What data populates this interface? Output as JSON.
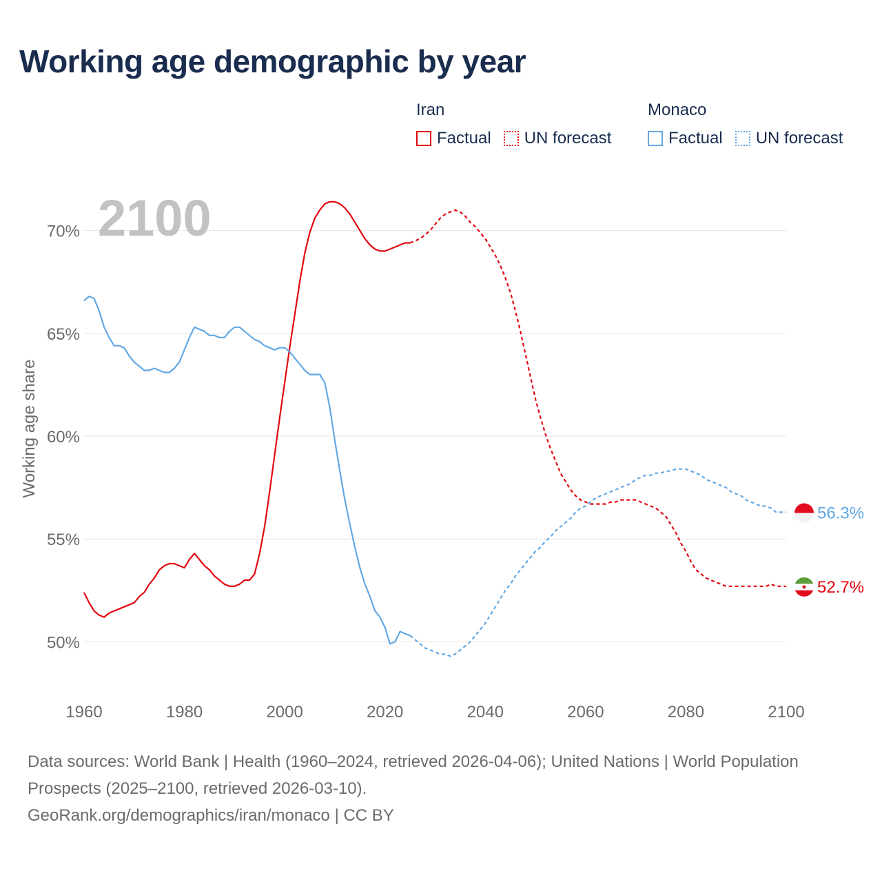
{
  "title": "Working age demographic by year",
  "legend": {
    "groups": [
      {
        "name": "Iran",
        "factual": "Factual",
        "forecast": "UN forecast"
      },
      {
        "name": "Monaco",
        "factual": "Factual",
        "forecast": "UN forecast"
      }
    ]
  },
  "footer": {
    "sources": "Data sources: World Bank | Health (1960–2024, retrieved 2026-04-06); United Nations | World Population Prospects (2025–2100, retrieved 2026-03-10).",
    "link": "GeoRank.org/demographics/iran/monaco | CC BY"
  },
  "chart_data": {
    "type": "line",
    "title": "Working age demographic by year",
    "ylabel": "Working age share",
    "xlabel": "",
    "year_label": "2100",
    "xlim": [
      1960,
      2100
    ],
    "ylim": [
      47.5,
      72.5
    ],
    "x_ticks": [
      1960,
      1980,
      2000,
      2020,
      2040,
      2060,
      2080,
      2100
    ],
    "x_tick_labels": [
      "1960",
      "1980",
      "2000",
      "2020",
      "2040",
      "2060",
      "2080",
      "2100"
    ],
    "y_ticks": [
      50,
      55,
      60,
      65,
      70
    ],
    "y_tick_labels": [
      "50%",
      "55%",
      "60%",
      "65%",
      "70%"
    ],
    "factual_end_year": 2025,
    "series": [
      {
        "name": "Iran",
        "color": "#e3060f",
        "end_label": "52.7%",
        "flag": "iran-flag-icon",
        "points": [
          [
            1960,
            52.4
          ],
          [
            1961,
            51.9
          ],
          [
            1962,
            51.5
          ],
          [
            1963,
            51.3
          ],
          [
            1964,
            51.2
          ],
          [
            1965,
            51.4
          ],
          [
            1966,
            51.5
          ],
          [
            1967,
            51.6
          ],
          [
            1968,
            51.7
          ],
          [
            1969,
            51.8
          ],
          [
            1970,
            51.9
          ],
          [
            1971,
            52.2
          ],
          [
            1972,
            52.4
          ],
          [
            1973,
            52.8
          ],
          [
            1974,
            53.1
          ],
          [
            1975,
            53.5
          ],
          [
            1976,
            53.7
          ],
          [
            1977,
            53.8
          ],
          [
            1978,
            53.8
          ],
          [
            1979,
            53.7
          ],
          [
            1980,
            53.6
          ],
          [
            1981,
            54.0
          ],
          [
            1982,
            54.3
          ],
          [
            1983,
            54.0
          ],
          [
            1984,
            53.7
          ],
          [
            1985,
            53.5
          ],
          [
            1986,
            53.2
          ],
          [
            1987,
            53.0
          ],
          [
            1988,
            52.8
          ],
          [
            1989,
            52.7
          ],
          [
            1990,
            52.7
          ],
          [
            1991,
            52.8
          ],
          [
            1992,
            53.0
          ],
          [
            1993,
            53.0
          ],
          [
            1994,
            53.3
          ],
          [
            1995,
            54.3
          ],
          [
            1996,
            55.6
          ],
          [
            1997,
            57.3
          ],
          [
            1998,
            59.1
          ],
          [
            1999,
            60.9
          ],
          [
            2000,
            62.6
          ],
          [
            2001,
            64.3
          ],
          [
            2002,
            65.9
          ],
          [
            2003,
            67.5
          ],
          [
            2004,
            68.9
          ],
          [
            2005,
            69.9
          ],
          [
            2006,
            70.6
          ],
          [
            2007,
            71.0
          ],
          [
            2008,
            71.3
          ],
          [
            2009,
            71.4
          ],
          [
            2010,
            71.4
          ],
          [
            2011,
            71.3
          ],
          [
            2012,
            71.1
          ],
          [
            2013,
            70.8
          ],
          [
            2014,
            70.4
          ],
          [
            2015,
            70.0
          ],
          [
            2016,
            69.6
          ],
          [
            2017,
            69.3
          ],
          [
            2018,
            69.1
          ],
          [
            2019,
            69.0
          ],
          [
            2020,
            69.0
          ],
          [
            2021,
            69.1
          ],
          [
            2022,
            69.2
          ],
          [
            2023,
            69.3
          ],
          [
            2024,
            69.4
          ],
          [
            2025,
            69.4
          ],
          [
            2026,
            69.5
          ],
          [
            2027,
            69.6
          ],
          [
            2028,
            69.8
          ],
          [
            2029,
            70.0
          ],
          [
            2030,
            70.3
          ],
          [
            2031,
            70.6
          ],
          [
            2032,
            70.8
          ],
          [
            2033,
            70.9
          ],
          [
            2034,
            71.0
          ],
          [
            2035,
            70.9
          ],
          [
            2036,
            70.7
          ],
          [
            2037,
            70.4
          ],
          [
            2038,
            70.2
          ],
          [
            2039,
            69.9
          ],
          [
            2040,
            69.6
          ],
          [
            2041,
            69.2
          ],
          [
            2042,
            68.8
          ],
          [
            2043,
            68.3
          ],
          [
            2044,
            67.7
          ],
          [
            2045,
            67.0
          ],
          [
            2046,
            66.1
          ],
          [
            2047,
            65.1
          ],
          [
            2048,
            64.0
          ],
          [
            2049,
            62.9
          ],
          [
            2050,
            61.8
          ],
          [
            2051,
            60.9
          ],
          [
            2052,
            60.1
          ],
          [
            2053,
            59.4
          ],
          [
            2054,
            58.8
          ],
          [
            2055,
            58.2
          ],
          [
            2056,
            57.8
          ],
          [
            2057,
            57.4
          ],
          [
            2058,
            57.1
          ],
          [
            2059,
            56.9
          ],
          [
            2060,
            56.8
          ],
          [
            2061,
            56.7
          ],
          [
            2062,
            56.7
          ],
          [
            2063,
            56.7
          ],
          [
            2064,
            56.7
          ],
          [
            2065,
            56.8
          ],
          [
            2066,
            56.8
          ],
          [
            2067,
            56.9
          ],
          [
            2068,
            56.9
          ],
          [
            2069,
            56.9
          ],
          [
            2070,
            56.9
          ],
          [
            2071,
            56.8
          ],
          [
            2072,
            56.7
          ],
          [
            2073,
            56.6
          ],
          [
            2074,
            56.5
          ],
          [
            2075,
            56.3
          ],
          [
            2076,
            56.1
          ],
          [
            2077,
            55.7
          ],
          [
            2078,
            55.3
          ],
          [
            2079,
            54.8
          ],
          [
            2080,
            54.4
          ],
          [
            2081,
            53.9
          ],
          [
            2082,
            53.5
          ],
          [
            2083,
            53.3
          ],
          [
            2084,
            53.1
          ],
          [
            2085,
            53.0
          ],
          [
            2086,
            52.9
          ],
          [
            2087,
            52.8
          ],
          [
            2088,
            52.7
          ],
          [
            2089,
            52.7
          ],
          [
            2090,
            52.7
          ],
          [
            2091,
            52.7
          ],
          [
            2092,
            52.7
          ],
          [
            2093,
            52.7
          ],
          [
            2094,
            52.7
          ],
          [
            2095,
            52.7
          ],
          [
            2096,
            52.7
          ],
          [
            2097,
            52.8
          ],
          [
            2098,
            52.7
          ],
          [
            2099,
            52.7
          ],
          [
            2100,
            52.7
          ]
        ]
      },
      {
        "name": "Monaco",
        "color": "#62a8e5",
        "end_label": "56.3%",
        "flag": "monaco-flag-icon",
        "points": [
          [
            1960,
            66.6
          ],
          [
            1961,
            66.8
          ],
          [
            1962,
            66.7
          ],
          [
            1963,
            66.1
          ],
          [
            1964,
            65.3
          ],
          [
            1965,
            64.8
          ],
          [
            1966,
            64.4
          ],
          [
            1967,
            64.4
          ],
          [
            1968,
            64.3
          ],
          [
            1969,
            63.9
          ],
          [
            1970,
            63.6
          ],
          [
            1971,
            63.4
          ],
          [
            1972,
            63.2
          ],
          [
            1973,
            63.2
          ],
          [
            1974,
            63.3
          ],
          [
            1975,
            63.2
          ],
          [
            1976,
            63.1
          ],
          [
            1977,
            63.1
          ],
          [
            1978,
            63.3
          ],
          [
            1979,
            63.6
          ],
          [
            1980,
            64.2
          ],
          [
            1981,
            64.8
          ],
          [
            1982,
            65.3
          ],
          [
            1983,
            65.2
          ],
          [
            1984,
            65.1
          ],
          [
            1985,
            64.9
          ],
          [
            1986,
            64.9
          ],
          [
            1987,
            64.8
          ],
          [
            1988,
            64.8
          ],
          [
            1989,
            65.1
          ],
          [
            1990,
            65.3
          ],
          [
            1991,
            65.3
          ],
          [
            1992,
            65.1
          ],
          [
            1993,
            64.9
          ],
          [
            1994,
            64.7
          ],
          [
            1995,
            64.6
          ],
          [
            1996,
            64.4
          ],
          [
            1997,
            64.3
          ],
          [
            1998,
            64.2
          ],
          [
            1999,
            64.3
          ],
          [
            2000,
            64.3
          ],
          [
            2001,
            64.1
          ],
          [
            2002,
            63.8
          ],
          [
            2003,
            63.5
          ],
          [
            2004,
            63.2
          ],
          [
            2005,
            63.0
          ],
          [
            2006,
            63.0
          ],
          [
            2007,
            63.0
          ],
          [
            2008,
            62.6
          ],
          [
            2009,
            61.4
          ],
          [
            2010,
            59.8
          ],
          [
            2011,
            58.3
          ],
          [
            2012,
            56.9
          ],
          [
            2013,
            55.7
          ],
          [
            2014,
            54.6
          ],
          [
            2015,
            53.6
          ],
          [
            2016,
            52.8
          ],
          [
            2017,
            52.2
          ],
          [
            2018,
            51.5
          ],
          [
            2019,
            51.2
          ],
          [
            2020,
            50.7
          ],
          [
            2021,
            49.9
          ],
          [
            2022,
            50.0
          ],
          [
            2023,
            50.5
          ],
          [
            2024,
            50.4
          ],
          [
            2025,
            50.3
          ],
          [
            2026,
            50.1
          ],
          [
            2027,
            49.9
          ],
          [
            2028,
            49.7
          ],
          [
            2029,
            49.6
          ],
          [
            2030,
            49.5
          ],
          [
            2031,
            49.4
          ],
          [
            2032,
            49.4
          ],
          [
            2033,
            49.3
          ],
          [
            2034,
            49.4
          ],
          [
            2035,
            49.6
          ],
          [
            2036,
            49.8
          ],
          [
            2037,
            50.0
          ],
          [
            2038,
            50.3
          ],
          [
            2039,
            50.6
          ],
          [
            2040,
            50.9
          ],
          [
            2041,
            51.3
          ],
          [
            2042,
            51.7
          ],
          [
            2043,
            52.1
          ],
          [
            2044,
            52.5
          ],
          [
            2045,
            52.8
          ],
          [
            2046,
            53.2
          ],
          [
            2047,
            53.5
          ],
          [
            2048,
            53.8
          ],
          [
            2049,
            54.1
          ],
          [
            2050,
            54.4
          ],
          [
            2051,
            54.6
          ],
          [
            2052,
            54.9
          ],
          [
            2053,
            55.1
          ],
          [
            2054,
            55.4
          ],
          [
            2055,
            55.6
          ],
          [
            2056,
            55.8
          ],
          [
            2057,
            56.0
          ],
          [
            2058,
            56.3
          ],
          [
            2059,
            56.5
          ],
          [
            2060,
            56.6
          ],
          [
            2061,
            56.8
          ],
          [
            2062,
            57.0
          ],
          [
            2063,
            57.1
          ],
          [
            2064,
            57.2
          ],
          [
            2065,
            57.3
          ],
          [
            2066,
            57.4
          ],
          [
            2067,
            57.5
          ],
          [
            2068,
            57.6
          ],
          [
            2069,
            57.7
          ],
          [
            2070,
            57.9
          ],
          [
            2071,
            58.0
          ],
          [
            2072,
            58.1
          ],
          [
            2073,
            58.1
          ],
          [
            2074,
            58.2
          ],
          [
            2075,
            58.2
          ],
          [
            2076,
            58.3
          ],
          [
            2077,
            58.3
          ],
          [
            2078,
            58.4
          ],
          [
            2079,
            58.4
          ],
          [
            2080,
            58.4
          ],
          [
            2081,
            58.3
          ],
          [
            2082,
            58.2
          ],
          [
            2083,
            58.1
          ],
          [
            2084,
            57.9
          ],
          [
            2085,
            57.8
          ],
          [
            2086,
            57.7
          ],
          [
            2087,
            57.6
          ],
          [
            2088,
            57.5
          ],
          [
            2089,
            57.3
          ],
          [
            2090,
            57.2
          ],
          [
            2091,
            57.1
          ],
          [
            2092,
            56.9
          ],
          [
            2093,
            56.8
          ],
          [
            2094,
            56.7
          ],
          [
            2095,
            56.6
          ],
          [
            2096,
            56.6
          ],
          [
            2097,
            56.5
          ],
          [
            2098,
            56.3
          ],
          [
            2099,
            56.3
          ],
          [
            2100,
            56.3
          ]
        ]
      }
    ]
  }
}
